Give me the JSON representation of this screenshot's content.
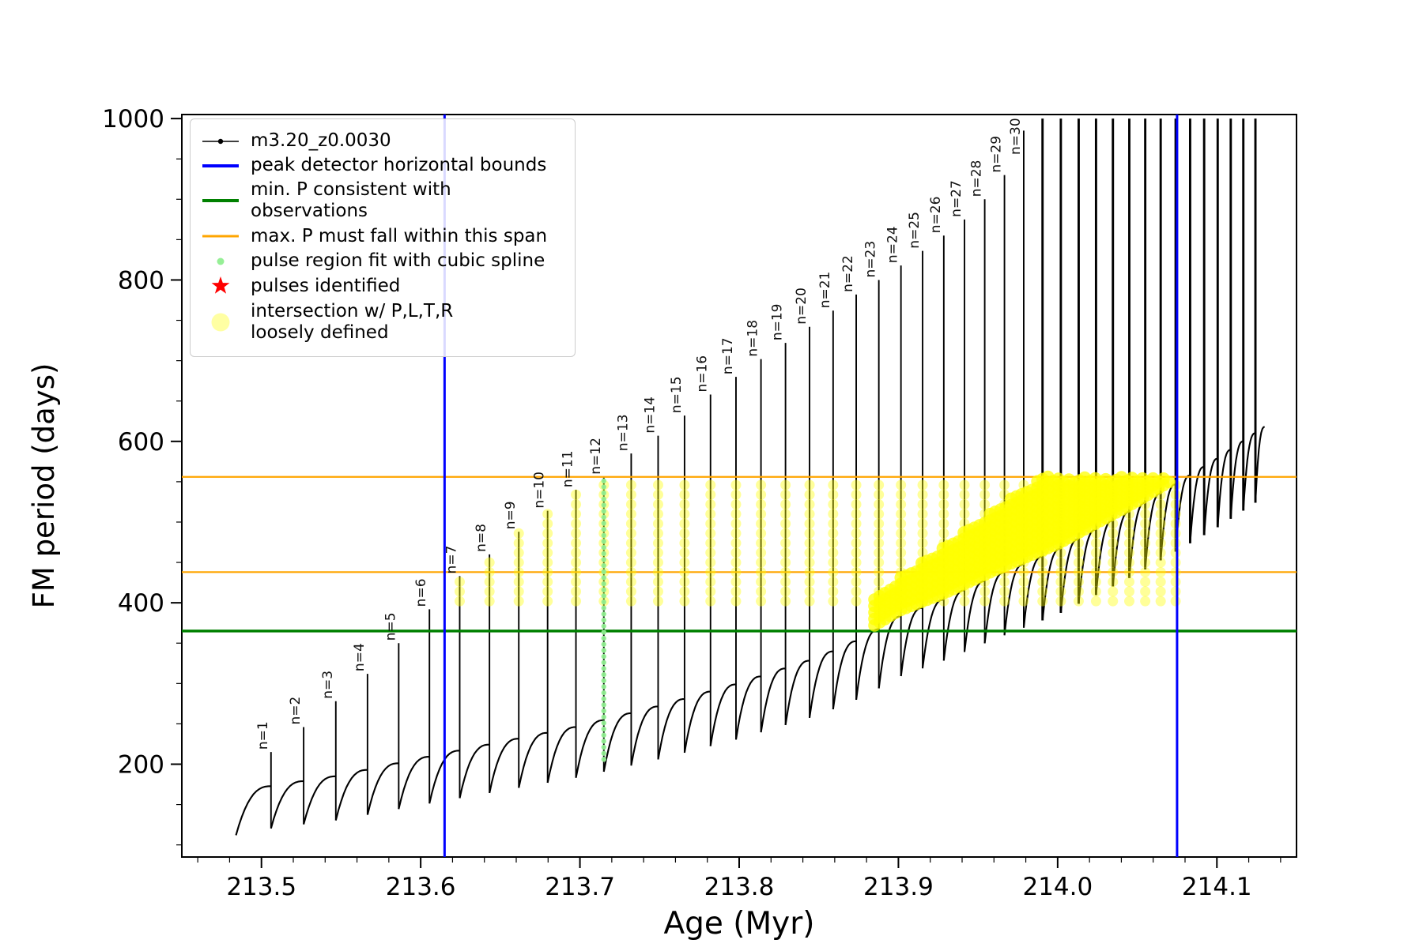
{
  "chart_data": {
    "type": "line",
    "title": "",
    "xlabel": "Age (Myr)",
    "ylabel": "FM period (days)",
    "xlim": [
      213.45,
      214.15
    ],
    "ylim": [
      85,
      1005
    ],
    "x_ticks": [
      213.5,
      213.6,
      213.7,
      213.8,
      213.9,
      214.0,
      214.1
    ],
    "x_tick_labels": [
      "213.5",
      "213.6",
      "213.7",
      "213.8",
      "213.9",
      "214.0",
      "214.1"
    ],
    "x_minor_step": 0.02,
    "y_ticks": [
      200,
      400,
      600,
      800,
      1000
    ],
    "y_tick_labels": [
      "200",
      "400",
      "600",
      "800",
      "1000"
    ],
    "y_minor_step": 50,
    "grid": false,
    "legend_position": "upper-left",
    "colors": {
      "series": "#000000",
      "peak_bounds": "#0000ff",
      "min_p": "#008000",
      "max_p_span": "#ffa500",
      "spline_fit": "#90ee90",
      "pulses_identified": "#ff0000",
      "intersection": "#ffff00"
    },
    "vlines_blue": [
      213.615,
      214.075
    ],
    "hline_green": 365,
    "hlines_orange": [
      438,
      556
    ],
    "pulses": [
      {
        "label": "n=1",
        "x": 213.506,
        "top": 215
      },
      {
        "label": "n=2",
        "x": 213.5265,
        "top": 246
      },
      {
        "label": "n=3",
        "x": 213.5467,
        "top": 278
      },
      {
        "label": "n=4",
        "x": 213.5666,
        "top": 312
      },
      {
        "label": "n=5",
        "x": 213.5862,
        "top": 350
      },
      {
        "label": "n=6",
        "x": 213.6055,
        "top": 392
      },
      {
        "label": "n=7",
        "x": 213.6245,
        "top": 433
      },
      {
        "label": "n=8",
        "x": 213.6432,
        "top": 460
      },
      {
        "label": "n=9",
        "x": 213.6616,
        "top": 488
      },
      {
        "label": "n=10",
        "x": 213.6797,
        "top": 514
      },
      {
        "label": "n=11",
        "x": 213.6975,
        "top": 540
      },
      {
        "label": "n=12",
        "x": 213.715,
        "top": 556
      },
      {
        "label": "n=13",
        "x": 213.7322,
        "top": 585
      },
      {
        "label": "n=14",
        "x": 213.7491,
        "top": 607
      },
      {
        "label": "n=15",
        "x": 213.7657,
        "top": 632
      },
      {
        "label": "n=16",
        "x": 213.782,
        "top": 658
      },
      {
        "label": "n=17",
        "x": 213.798,
        "top": 680
      },
      {
        "label": "n=18",
        "x": 213.8137,
        "top": 702
      },
      {
        "label": "n=19",
        "x": 213.8291,
        "top": 722
      },
      {
        "label": "n=20",
        "x": 213.8442,
        "top": 742
      },
      {
        "label": "n=21",
        "x": 213.859,
        "top": 762
      },
      {
        "label": "n=22",
        "x": 213.8735,
        "top": 782
      },
      {
        "label": "n=23",
        "x": 213.8877,
        "top": 800
      },
      {
        "label": "n=24",
        "x": 213.9016,
        "top": 818
      },
      {
        "label": "n=25",
        "x": 213.9152,
        "top": 836
      },
      {
        "label": "n=26",
        "x": 213.9285,
        "top": 855
      },
      {
        "label": "n=27",
        "x": 213.9415,
        "top": 875
      },
      {
        "label": "n=28",
        "x": 213.9542,
        "top": 900
      },
      {
        "label": "n=29",
        "x": 213.9666,
        "top": 930
      },
      {
        "label": "n=30",
        "x": 213.9787,
        "top": 985
      }
    ],
    "extra_spikes": [
      {
        "x": 213.9905,
        "top": 1000
      },
      {
        "x": 214.002,
        "top": 1000
      },
      {
        "x": 214.0132,
        "top": 1000
      },
      {
        "x": 214.0241,
        "top": 1000
      },
      {
        "x": 214.0347,
        "top": 1000
      },
      {
        "x": 214.045,
        "top": 1000
      },
      {
        "x": 214.055,
        "top": 1000
      },
      {
        "x": 214.0647,
        "top": 1000
      },
      {
        "x": 214.0741,
        "top": 1000
      },
      {
        "x": 214.0832,
        "top": 1000
      },
      {
        "x": 214.092,
        "top": 1000
      },
      {
        "x": 214.1005,
        "top": 1000
      },
      {
        "x": 214.1087,
        "top": 1000
      },
      {
        "x": 214.1166,
        "top": 1000
      },
      {
        "x": 214.1242,
        "top": 1000
      }
    ],
    "baseline_cusp": [
      [
        213.48,
        165
      ],
      [
        213.55,
        186
      ],
      [
        213.6,
        207
      ],
      [
        213.65,
        227
      ],
      [
        213.7,
        247
      ],
      [
        213.75,
        272
      ],
      [
        213.8,
        300
      ],
      [
        213.85,
        332
      ],
      [
        213.88,
        358
      ],
      [
        213.9,
        382
      ],
      [
        213.93,
        405
      ],
      [
        213.96,
        432
      ],
      [
        214.0,
        465
      ],
      [
        214.05,
        518
      ],
      [
        214.1,
        578
      ],
      [
        214.145,
        638
      ]
    ],
    "first_point": [
      213.484,
      112
    ],
    "tooth_drop": {
      "base": 52,
      "slope": 55,
      "x0": 213.5
    },
    "yellow_columns": {
      "x_min": 213.624,
      "x_max": 214.076,
      "y_min": 402,
      "y_cap": 556,
      "y_step": 12,
      "r": 6.5,
      "opacity": 0.4
    },
    "yellow_wedge": {
      "x_start": 213.885,
      "x_end": 214.072,
      "x_step": 0.0033,
      "bottom_offset": 8,
      "top_start": 408,
      "top_slope": 1410,
      "top_cap": 556,
      "y_step": 8,
      "r": 8,
      "opacity": 0.75
    },
    "spline_column": {
      "x": 213.715,
      "y_min": 206,
      "y_max": 556,
      "y_step": 7.5,
      "r": 3.2
    },
    "legend": [
      {
        "label": "m3.20_z0.0030",
        "marker": "line-dot",
        "color": "#000000",
        "thick": 1.6
      },
      {
        "label": "peak detector horizontal bounds",
        "marker": "line",
        "color": "#0000ff",
        "thick": 4
      },
      {
        "label": "min. P consistent with observations",
        "marker": "line",
        "color": "#008000",
        "thick": 4
      },
      {
        "label": "max. P must fall within this span",
        "marker": "line",
        "color": "#ffa500",
        "thick": 3
      },
      {
        "label": "pulse region fit with cubic spline",
        "marker": "dot",
        "color": "#90ee90",
        "size": 9
      },
      {
        "label": "pulses identified",
        "marker": "star",
        "color": "#ff0000",
        "size": 26
      },
      {
        "label": "intersection w/ P,L,T,R\nloosely defined",
        "marker": "dot",
        "color": "#ffff9e",
        "size": 23
      }
    ]
  }
}
